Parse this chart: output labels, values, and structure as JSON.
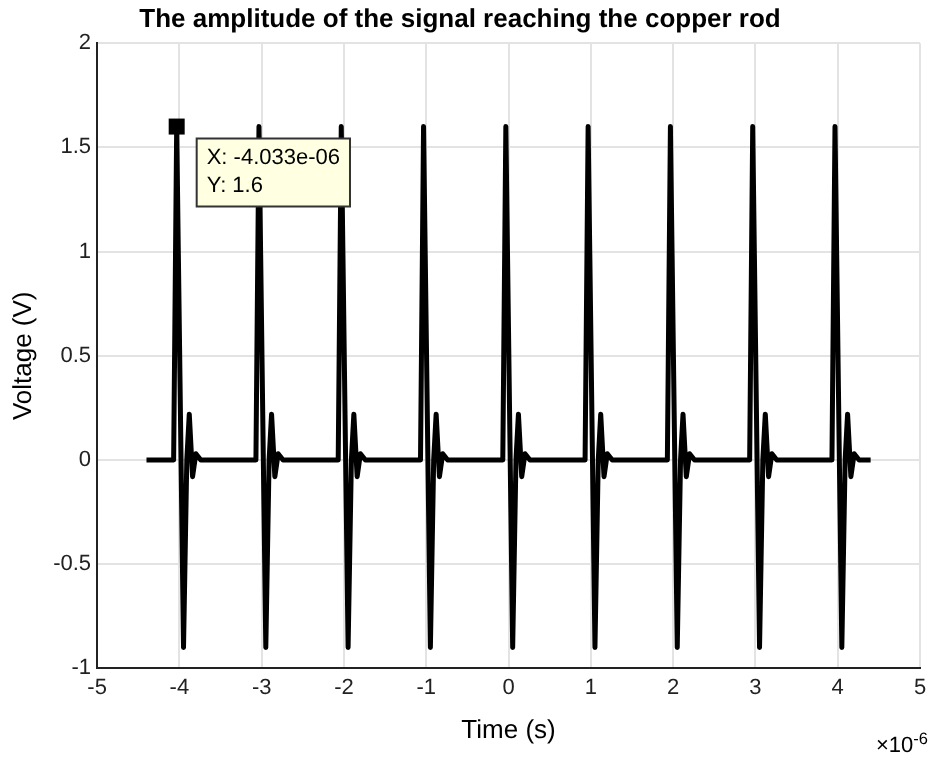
{
  "chart_data": {
    "type": "line",
    "title": "The amplitude of the signal reaching the copper rod",
    "xlabel": "Time (s)",
    "ylabel": "Voltage (V)",
    "x": [
      -4.4,
      -4.07,
      -4.033,
      -3.95,
      -3.91,
      -3.88,
      -3.84,
      -3.8,
      -3.74,
      -3.07,
      -3.033,
      -2.95,
      -2.91,
      -2.88,
      -2.84,
      -2.8,
      -2.74,
      -2.07,
      -2.033,
      -1.95,
      -1.91,
      -1.88,
      -1.84,
      -1.8,
      -1.74,
      -1.07,
      -1.033,
      -0.95,
      -0.91,
      -0.88,
      -0.84,
      -0.8,
      -0.74,
      -0.07,
      -0.033,
      0.05,
      0.09,
      0.12,
      0.16,
      0.2,
      0.26,
      0.93,
      0.967,
      1.05,
      1.09,
      1.12,
      1.16,
      1.2,
      1.26,
      1.93,
      1.967,
      2.05,
      2.09,
      2.12,
      2.16,
      2.2,
      2.26,
      2.93,
      2.967,
      3.05,
      3.09,
      3.12,
      3.16,
      3.2,
      3.26,
      3.93,
      3.967,
      4.05,
      4.09,
      4.12,
      4.16,
      4.2,
      4.26,
      4.4
    ],
    "series": [
      {
        "color": "#000000",
        "values": [
          0,
          0,
          1.6,
          -0.9,
          0,
          0.22,
          -0.08,
          0.03,
          0,
          0,
          1.6,
          -0.9,
          0,
          0.22,
          -0.08,
          0.03,
          0,
          0,
          1.6,
          -0.9,
          0,
          0.22,
          -0.08,
          0.03,
          0,
          0,
          1.6,
          -0.9,
          0,
          0.22,
          -0.08,
          0.03,
          0,
          0,
          1.6,
          -0.9,
          0,
          0.22,
          -0.08,
          0.03,
          0,
          0,
          1.6,
          -0.9,
          0,
          0.22,
          -0.08,
          0.03,
          0,
          0,
          1.6,
          -0.9,
          0,
          0.22,
          -0.08,
          0.03,
          0,
          0,
          1.6,
          -0.9,
          0,
          0.22,
          -0.08,
          0.03,
          0,
          0,
          1.6,
          -0.9,
          0,
          0.22,
          -0.08,
          0.03,
          0,
          0
        ]
      }
    ],
    "xlim": [
      -5,
      5
    ],
    "xticks": [
      -5,
      -4,
      -3,
      -2,
      -1,
      0,
      1,
      2,
      3,
      4,
      5
    ],
    "ylim": [
      -1,
      2
    ],
    "yticks": [
      -1,
      -0.5,
      0,
      0.5,
      1,
      1.5,
      2
    ],
    "grid": true,
    "legend": false,
    "marker": "none",
    "line_style": "solid",
    "annotations": [
      {
        "text": "X: -4.033e-06\nY: 1.6",
        "x": -4.033,
        "y": 1.6
      },
      "×10$^{-6}$"
    ]
  }
}
